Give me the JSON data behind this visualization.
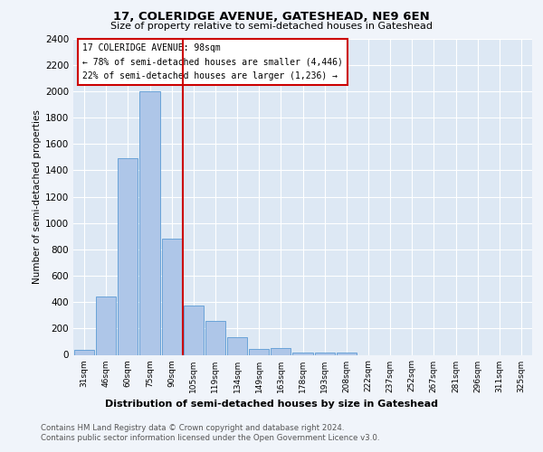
{
  "title1": "17, COLERIDGE AVENUE, GATESHEAD, NE9 6EN",
  "title2": "Size of property relative to semi-detached houses in Gateshead",
  "xlabel": "Distribution of semi-detached houses by size in Gateshead",
  "ylabel": "Number of semi-detached properties",
  "categories": [
    "31sqm",
    "46sqm",
    "60sqm",
    "75sqm",
    "90sqm",
    "105sqm",
    "119sqm",
    "134sqm",
    "149sqm",
    "163sqm",
    "178sqm",
    "193sqm",
    "208sqm",
    "222sqm",
    "237sqm",
    "252sqm",
    "267sqm",
    "281sqm",
    "296sqm",
    "311sqm",
    "325sqm"
  ],
  "values": [
    35,
    445,
    1490,
    2000,
    880,
    375,
    255,
    135,
    45,
    50,
    20,
    15,
    15,
    0,
    0,
    0,
    0,
    0,
    0,
    0,
    0
  ],
  "bar_color": "#aec6e8",
  "bar_edge_color": "#5b9bd5",
  "vline_color": "#cc0000",
  "annotation_title": "17 COLERIDGE AVENUE: 98sqm",
  "annotation_line1": "← 78% of semi-detached houses are smaller (4,446)",
  "annotation_line2": "22% of semi-detached houses are larger (1,236) →",
  "ylim": [
    0,
    2400
  ],
  "yticks": [
    0,
    200,
    400,
    600,
    800,
    1000,
    1200,
    1400,
    1600,
    1800,
    2000,
    2200,
    2400
  ],
  "footer1": "Contains HM Land Registry data © Crown copyright and database right 2024.",
  "footer2": "Contains public sector information licensed under the Open Government Licence v3.0.",
  "fig_bg_color": "#f0f4fa",
  "plot_bg_color": "#dde8f4"
}
